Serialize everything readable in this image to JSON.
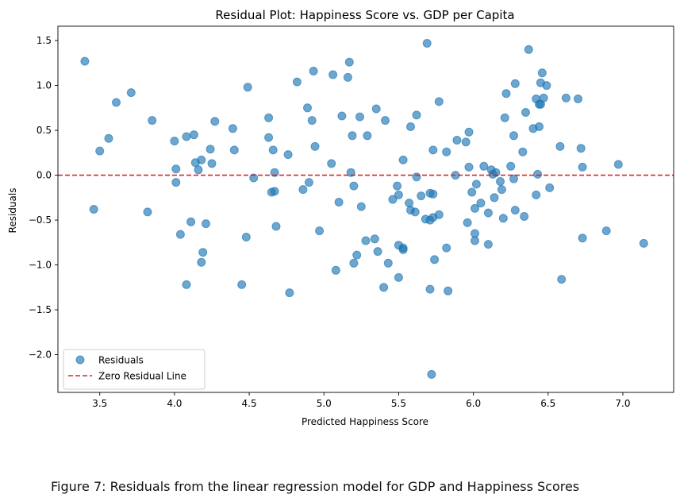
{
  "chart_data": {
    "type": "scatter",
    "title": "Residual Plot: Happiness Score vs. GDP per Capita",
    "xlabel": "Predicted Happiness Score",
    "ylabel": "Residuals",
    "xlim": [
      3.22,
      7.34
    ],
    "ylim": [
      -2.42,
      1.66
    ],
    "xticks": [
      3.5,
      4.0,
      4.5,
      5.0,
      5.5,
      6.0,
      6.5,
      7.0
    ],
    "xtick_labels": [
      "3.5",
      "4.0",
      "4.5",
      "5.0",
      "5.5",
      "6.0",
      "6.5",
      "7.0"
    ],
    "yticks": [
      -2.0,
      -1.5,
      -1.0,
      -0.5,
      0.0,
      0.5,
      1.0,
      1.5
    ],
    "ytick_labels": [
      "−2.0",
      "−1.5",
      "−1.0",
      "−0.5",
      "0.0",
      "0.5",
      "1.0",
      "1.5"
    ],
    "grid": false,
    "legend_position": "bottom-left",
    "reference_line": {
      "y": 0.0,
      "name": "Zero Residual Line",
      "color": "#d62728",
      "style": "dashed"
    },
    "series": [
      {
        "name": "Residuals",
        "color": "#1f77b4",
        "alpha": 0.65,
        "points": [
          [
            3.4,
            1.27
          ],
          [
            3.46,
            -0.38
          ],
          [
            3.5,
            0.27
          ],
          [
            3.56,
            0.41
          ],
          [
            3.61,
            0.81
          ],
          [
            3.71,
            0.92
          ],
          [
            3.82,
            -0.41
          ],
          [
            3.85,
            0.61
          ],
          [
            4.0,
            0.38
          ],
          [
            4.01,
            0.07
          ],
          [
            4.01,
            -0.08
          ],
          [
            4.04,
            -0.66
          ],
          [
            4.08,
            0.43
          ],
          [
            4.08,
            -1.22
          ],
          [
            4.11,
            -0.52
          ],
          [
            4.13,
            0.45
          ],
          [
            4.14,
            0.14
          ],
          [
            4.16,
            0.06
          ],
          [
            4.18,
            0.17
          ],
          [
            4.18,
            -0.97
          ],
          [
            4.19,
            -0.86
          ],
          [
            4.21,
            -0.54
          ],
          [
            4.24,
            0.29
          ],
          [
            4.25,
            0.13
          ],
          [
            4.27,
            0.6
          ],
          [
            4.39,
            0.52
          ],
          [
            4.4,
            0.28
          ],
          [
            4.45,
            -1.22
          ],
          [
            4.48,
            -0.69
          ],
          [
            4.49,
            0.98
          ],
          [
            4.53,
            -0.03
          ],
          [
            4.63,
            0.64
          ],
          [
            4.63,
            0.42
          ],
          [
            4.65,
            -0.19
          ],
          [
            4.66,
            0.28
          ],
          [
            4.67,
            0.03
          ],
          [
            4.67,
            -0.18
          ],
          [
            4.68,
            -0.57
          ],
          [
            4.76,
            0.23
          ],
          [
            4.77,
            -1.31
          ],
          [
            4.82,
            1.04
          ],
          [
            4.86,
            -0.16
          ],
          [
            4.89,
            0.75
          ],
          [
            4.9,
            -0.08
          ],
          [
            4.92,
            0.61
          ],
          [
            4.93,
            1.16
          ],
          [
            4.94,
            0.32
          ],
          [
            4.97,
            -0.62
          ],
          [
            5.05,
            0.13
          ],
          [
            5.06,
            1.12
          ],
          [
            5.08,
            -1.06
          ],
          [
            5.1,
            -0.3
          ],
          [
            5.12,
            0.66
          ],
          [
            5.16,
            1.09
          ],
          [
            5.17,
            1.26
          ],
          [
            5.18,
            0.03
          ],
          [
            5.19,
            0.44
          ],
          [
            5.2,
            -0.98
          ],
          [
            5.2,
            -0.12
          ],
          [
            5.22,
            -0.89
          ],
          [
            5.24,
            0.65
          ],
          [
            5.25,
            -0.35
          ],
          [
            5.28,
            -0.73
          ],
          [
            5.29,
            0.44
          ],
          [
            5.34,
            -0.71
          ],
          [
            5.35,
            0.74
          ],
          [
            5.36,
            -0.85
          ],
          [
            5.4,
            -1.25
          ],
          [
            5.41,
            0.61
          ],
          [
            5.43,
            -0.98
          ],
          [
            5.46,
            -0.27
          ],
          [
            5.49,
            -0.12
          ],
          [
            5.5,
            -0.22
          ],
          [
            5.5,
            -0.78
          ],
          [
            5.5,
            -1.14
          ],
          [
            5.53,
            -0.83
          ],
          [
            5.53,
            -0.81
          ],
          [
            5.53,
            0.17
          ],
          [
            5.57,
            -0.31
          ],
          [
            5.58,
            -0.39
          ],
          [
            5.58,
            0.54
          ],
          [
            5.61,
            -0.41
          ],
          [
            5.62,
            -0.02
          ],
          [
            5.62,
            0.67
          ],
          [
            5.65,
            -0.23
          ],
          [
            5.68,
            -0.49
          ],
          [
            5.69,
            1.47
          ],
          [
            5.71,
            -0.2
          ],
          [
            5.71,
            -0.5
          ],
          [
            5.71,
            -1.27
          ],
          [
            5.72,
            -2.22
          ],
          [
            5.73,
            0.28
          ],
          [
            5.73,
            -0.47
          ],
          [
            5.73,
            -0.21
          ],
          [
            5.74,
            -0.94
          ],
          [
            5.77,
            -0.44
          ],
          [
            5.77,
            0.82
          ],
          [
            5.82,
            0.26
          ],
          [
            5.82,
            -0.81
          ],
          [
            5.83,
            -1.29
          ],
          [
            5.88,
            0.0
          ],
          [
            5.89,
            0.39
          ],
          [
            5.95,
            0.37
          ],
          [
            5.96,
            -0.53
          ],
          [
            5.97,
            0.48
          ],
          [
            5.97,
            0.09
          ],
          [
            5.99,
            -0.19
          ],
          [
            6.01,
            -0.37
          ],
          [
            6.01,
            -0.65
          ],
          [
            6.01,
            -0.73
          ],
          [
            6.02,
            -0.1
          ],
          [
            6.05,
            -0.31
          ],
          [
            6.07,
            0.1
          ],
          [
            6.1,
            -0.42
          ],
          [
            6.1,
            -0.77
          ],
          [
            6.12,
            0.06
          ],
          [
            6.13,
            0.01
          ],
          [
            6.14,
            -0.25
          ],
          [
            6.15,
            0.03
          ],
          [
            6.18,
            -0.07
          ],
          [
            6.19,
            -0.16
          ],
          [
            6.2,
            -0.48
          ],
          [
            6.21,
            0.64
          ],
          [
            6.22,
            0.91
          ],
          [
            6.25,
            0.1
          ],
          [
            6.27,
            -0.04
          ],
          [
            6.27,
            0.44
          ],
          [
            6.28,
            1.02
          ],
          [
            6.28,
            -0.39
          ],
          [
            6.33,
            0.26
          ],
          [
            6.34,
            -0.46
          ],
          [
            6.35,
            0.7
          ],
          [
            6.37,
            1.4
          ],
          [
            6.4,
            0.52
          ],
          [
            6.42,
            0.85
          ],
          [
            6.42,
            -0.22
          ],
          [
            6.43,
            0.01
          ],
          [
            6.44,
            0.79
          ],
          [
            6.44,
            0.54
          ],
          [
            6.45,
            0.79
          ],
          [
            6.45,
            1.03
          ],
          [
            6.46,
            1.14
          ],
          [
            6.47,
            0.86
          ],
          [
            6.49,
            1.0
          ],
          [
            6.51,
            -0.14
          ],
          [
            6.58,
            0.32
          ],
          [
            6.59,
            -1.16
          ],
          [
            6.62,
            0.86
          ],
          [
            6.7,
            0.85
          ],
          [
            6.72,
            0.3
          ],
          [
            6.73,
            0.09
          ],
          [
            6.73,
            -0.7
          ],
          [
            6.89,
            -0.62
          ],
          [
            6.97,
            0.12
          ],
          [
            7.14,
            -0.76
          ]
        ]
      }
    ]
  },
  "caption": "Figure 7: Residuals from the linear regression model for GDP and Happiness Scores"
}
